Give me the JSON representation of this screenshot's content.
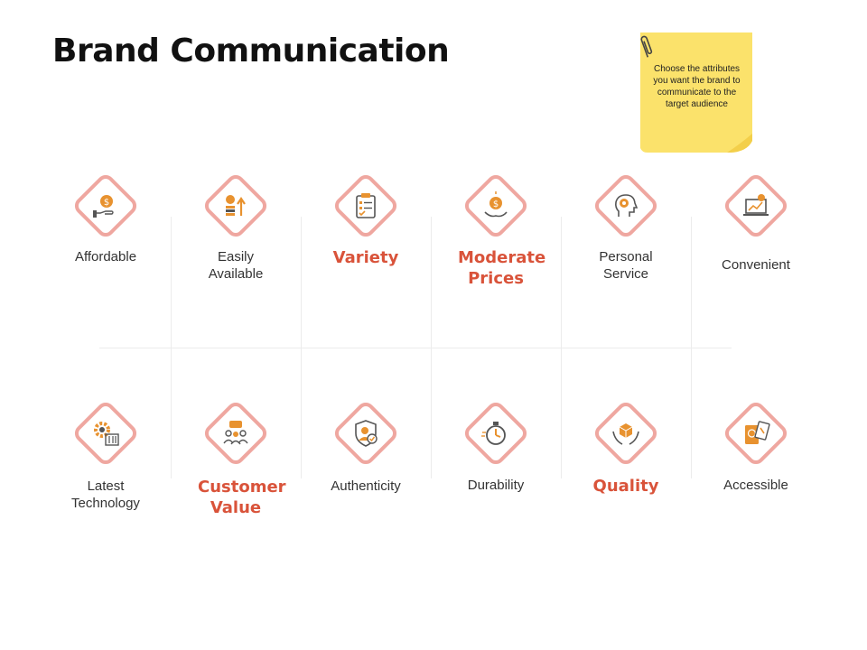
{
  "slide": {
    "title": "Brand Communication",
    "note": "Choose the attributes you want the brand to communicate to the target audience"
  },
  "colors": {
    "accent": "#d9533a",
    "diamond_border": "#efa7a0",
    "icon_orange": "#e8922f",
    "note_yellow": "#fbe26b"
  },
  "attributes": [
    {
      "label": "Affordable",
      "highlight": false,
      "icon": "money-hand-icon"
    },
    {
      "label": "Easily Available",
      "highlight": false,
      "icon": "coins-growth-icon"
    },
    {
      "label": "Variety",
      "highlight": true,
      "icon": "clipboard-checklist-icon"
    },
    {
      "label": "Moderate Prices",
      "highlight": true,
      "icon": "coin-hand-icon"
    },
    {
      "label": "Personal Service",
      "highlight": false,
      "icon": "head-gear-icon"
    },
    {
      "label": "Convenient",
      "highlight": false,
      "icon": "laptop-chart-icon"
    },
    {
      "label": "Latest Technology",
      "highlight": false,
      "icon": "gear-sliders-icon"
    },
    {
      "label": "Customer Value",
      "highlight": true,
      "icon": "customer-group-icon"
    },
    {
      "label": "Authenticity",
      "highlight": false,
      "icon": "shield-person-icon"
    },
    {
      "label": "Durability",
      "highlight": false,
      "icon": "stopwatch-icon"
    },
    {
      "label": "Quality",
      "highlight": true,
      "icon": "box-hands-icon"
    },
    {
      "label": "Accessible",
      "highlight": false,
      "icon": "passport-ticket-icon"
    }
  ]
}
